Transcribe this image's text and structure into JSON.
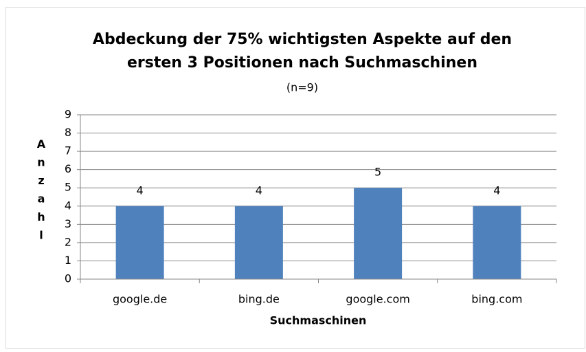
{
  "chart_data": {
    "type": "bar",
    "title": [
      "Abdeckung der 75% wichtigsten Aspekte auf den",
      "ersten 3 Positionen nach Suchmaschinen"
    ],
    "subtitle": "(n=9)",
    "x_label": "Suchmaschinen",
    "y_label": "Anzahl",
    "categories": [
      "google.de",
      "bing.de",
      "google.com",
      "bing.com"
    ],
    "values": [
      4,
      4,
      5,
      4
    ],
    "color": "#4f81bd",
    "ylim": [
      0,
      9
    ],
    "yticks": [
      0,
      1,
      2,
      3,
      4,
      5,
      6,
      7,
      8,
      9
    ],
    "grid": true
  }
}
